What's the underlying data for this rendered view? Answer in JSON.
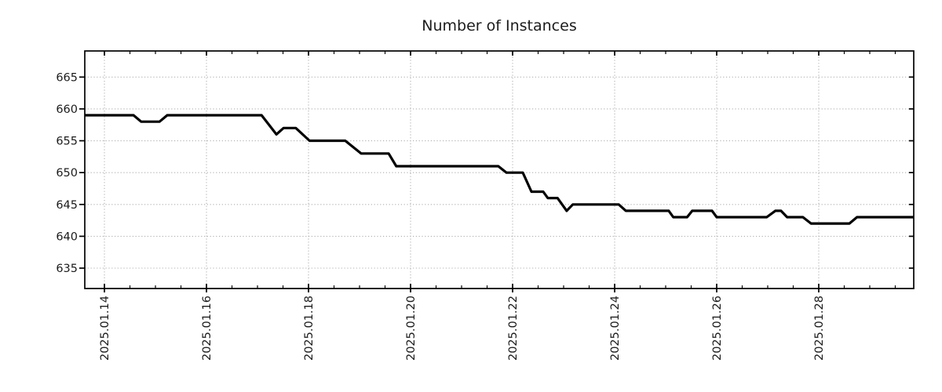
{
  "chart_data": {
    "type": "line",
    "title": "Number of Instances",
    "xlabel": "",
    "ylabel": "",
    "legend": "none",
    "grid": "dotted at major ticks, both axes",
    "x_axis": {
      "unit": "date (day of January 2025, fractional)",
      "range_days": [
        13.615,
        29.862
      ],
      "major_tick_days": [
        14,
        16,
        18,
        20,
        22,
        24,
        26,
        28
      ],
      "major_tick_labels": [
        "2025.01.14",
        "2025.01.16",
        "2025.01.18",
        "2025.01.20",
        "2025.01.22",
        "2025.01.24",
        "2025.01.26",
        "2025.01.28"
      ],
      "minor_tick_interval_days": 0.5,
      "tick_label_rotation_deg": 90
    },
    "y_axis": {
      "range": [
        631.8,
        669.1
      ],
      "major_ticks": [
        635,
        640,
        645,
        650,
        655,
        660,
        665
      ],
      "tick_labels": [
        "635",
        "640",
        "645",
        "650",
        "655",
        "660",
        "665"
      ]
    },
    "series": [
      {
        "name": "instances",
        "color": "#000000",
        "line_width": 3.2,
        "points": [
          [
            13.62,
            659
          ],
          [
            14.57,
            659
          ],
          [
            14.72,
            658
          ],
          [
            15.08,
            658
          ],
          [
            15.23,
            659
          ],
          [
            17.08,
            659
          ],
          [
            17.37,
            656
          ],
          [
            17.51,
            657
          ],
          [
            17.75,
            657
          ],
          [
            18.02,
            655
          ],
          [
            18.72,
            655
          ],
          [
            19.03,
            653
          ],
          [
            19.57,
            653
          ],
          [
            19.72,
            651
          ],
          [
            21.72,
            651
          ],
          [
            21.88,
            650
          ],
          [
            22.2,
            650
          ],
          [
            22.37,
            647
          ],
          [
            22.6,
            647
          ],
          [
            22.69,
            646
          ],
          [
            22.88,
            646
          ],
          [
            23.06,
            644
          ],
          [
            23.18,
            645
          ],
          [
            24.08,
            645
          ],
          [
            24.22,
            644
          ],
          [
            25.06,
            644
          ],
          [
            25.15,
            643
          ],
          [
            25.42,
            643
          ],
          [
            25.52,
            644
          ],
          [
            25.91,
            644
          ],
          [
            26.0,
            643
          ],
          [
            26.98,
            643
          ],
          [
            27.15,
            644
          ],
          [
            27.26,
            644
          ],
          [
            27.38,
            643
          ],
          [
            27.69,
            643
          ],
          [
            27.85,
            642
          ],
          [
            28.6,
            642
          ],
          [
            28.75,
            643
          ],
          [
            29.86,
            643
          ]
        ]
      }
    ],
    "colors": {
      "line": "#000000",
      "grid": "#b0b0b0",
      "box": "#000000",
      "text": "#1c1c1c",
      "background": "#ffffff"
    }
  }
}
